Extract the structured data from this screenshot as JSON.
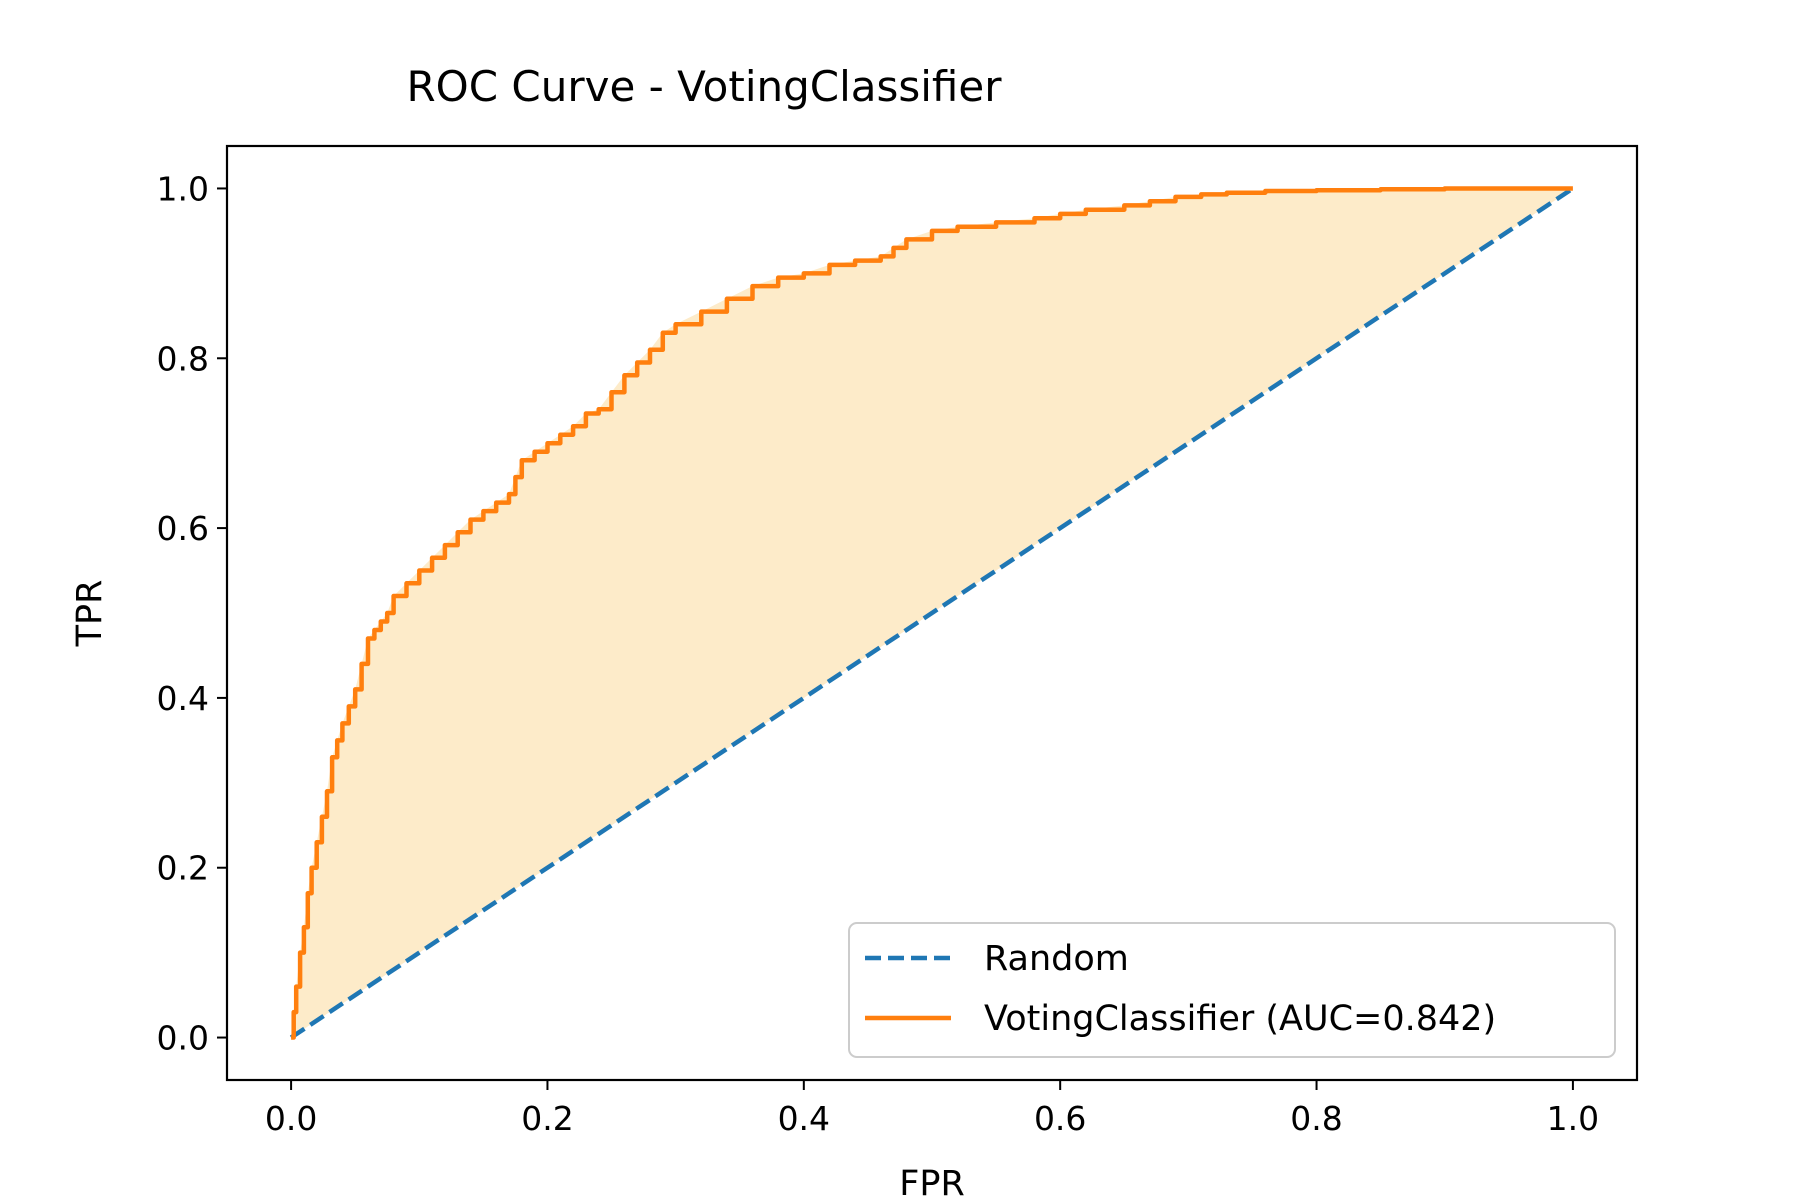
{
  "chart_data": {
    "type": "line",
    "title": "ROC Curve - VotingClassifier",
    "xlabel": "FPR",
    "ylabel": "TPR",
    "xlim": [
      -0.05,
      1.05
    ],
    "ylim": [
      -0.05,
      1.05
    ],
    "xticks": [
      "0.0",
      "0.2",
      "0.4",
      "0.6",
      "0.8",
      "1.0"
    ],
    "yticks": [
      "0.0",
      "0.2",
      "0.4",
      "0.6",
      "0.8",
      "1.0"
    ],
    "grid": false,
    "legend_position": "lower right",
    "fill_between_curve_and_diagonal": true,
    "series": [
      {
        "name": "Random",
        "style": "dashed",
        "color": "#1f77b4",
        "x": [
          0,
          1
        ],
        "y": [
          0,
          1
        ]
      },
      {
        "name": "VotingClassifier (AUC=0.842)",
        "style": "solid",
        "color": "#ff7f0e",
        "fill_color": "#fdebc9",
        "x": [
          0.0,
          0.002,
          0.004,
          0.007,
          0.01,
          0.013,
          0.016,
          0.02,
          0.024,
          0.028,
          0.032,
          0.036,
          0.04,
          0.045,
          0.05,
          0.055,
          0.06,
          0.065,
          0.07,
          0.075,
          0.08,
          0.09,
          0.1,
          0.11,
          0.12,
          0.13,
          0.14,
          0.15,
          0.16,
          0.17,
          0.175,
          0.18,
          0.19,
          0.2,
          0.21,
          0.22,
          0.23,
          0.24,
          0.25,
          0.26,
          0.27,
          0.28,
          0.29,
          0.3,
          0.32,
          0.34,
          0.36,
          0.38,
          0.4,
          0.42,
          0.44,
          0.46,
          0.47,
          0.48,
          0.5,
          0.52,
          0.55,
          0.58,
          0.6,
          0.62,
          0.65,
          0.67,
          0.69,
          0.71,
          0.73,
          0.76,
          0.8,
          0.85,
          0.9,
          0.93,
          0.95,
          0.98,
          1.0
        ],
        "y": [
          0.0,
          0.03,
          0.06,
          0.1,
          0.13,
          0.17,
          0.2,
          0.23,
          0.26,
          0.29,
          0.33,
          0.35,
          0.37,
          0.39,
          0.41,
          0.44,
          0.47,
          0.48,
          0.49,
          0.5,
          0.52,
          0.535,
          0.55,
          0.565,
          0.58,
          0.595,
          0.61,
          0.62,
          0.63,
          0.64,
          0.66,
          0.68,
          0.69,
          0.7,
          0.71,
          0.72,
          0.735,
          0.74,
          0.76,
          0.78,
          0.795,
          0.81,
          0.83,
          0.84,
          0.855,
          0.87,
          0.885,
          0.895,
          0.9,
          0.91,
          0.915,
          0.92,
          0.93,
          0.94,
          0.95,
          0.955,
          0.96,
          0.965,
          0.97,
          0.975,
          0.98,
          0.985,
          0.99,
          0.993,
          0.995,
          0.997,
          0.998,
          0.999,
          1.0,
          1.0,
          1.0,
          1.0,
          1.0
        ]
      }
    ]
  }
}
